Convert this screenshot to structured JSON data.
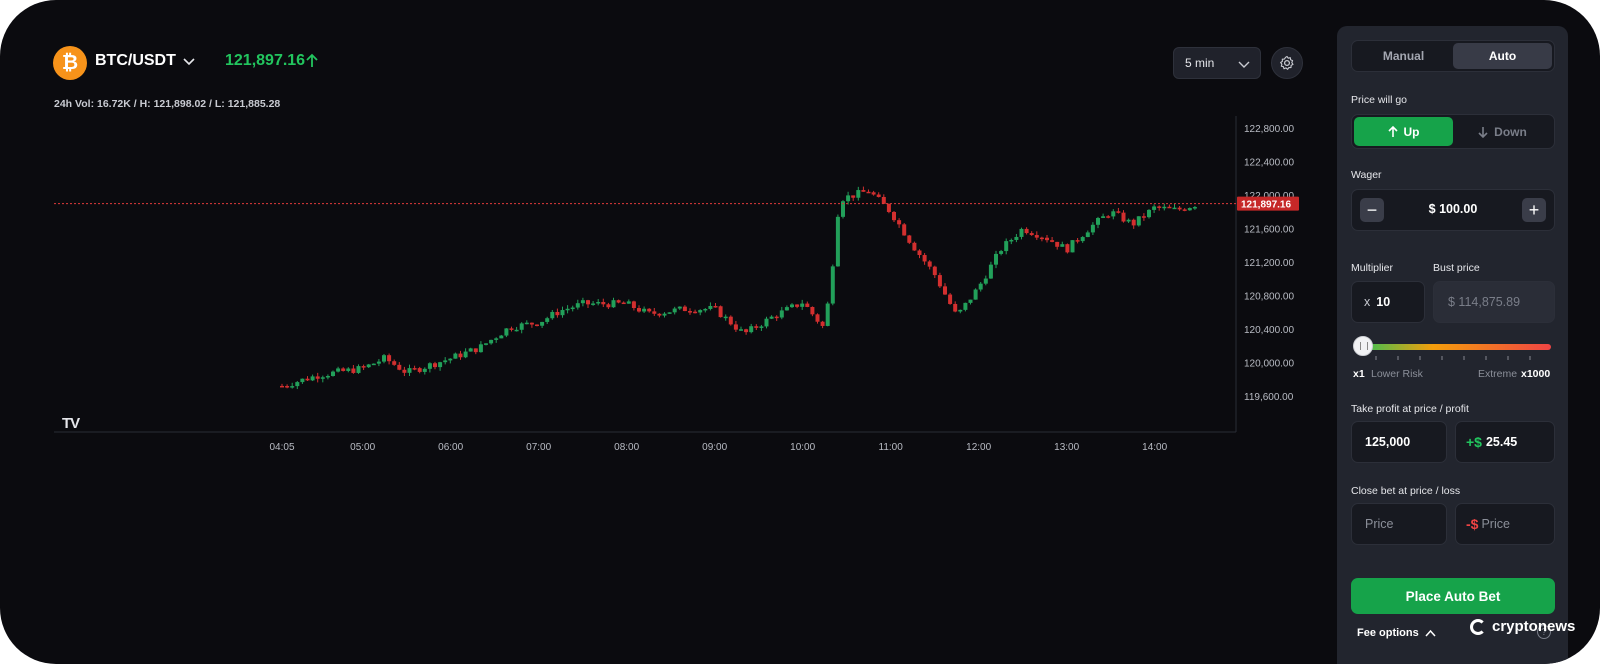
{
  "market": {
    "pair": "BTC/USDT",
    "price": "121,897.16",
    "stats": "24h Vol: 16.72K / H: 121,898.02 / L: 121,885.28",
    "interval": "5 min",
    "icon": "bitcoin-icon"
  },
  "chart_data": {
    "type": "candlestick",
    "x_labels": [
      "04:05",
      "05:00",
      "06:00",
      "07:00",
      "08:00",
      "09:00",
      "10:00",
      "11:00",
      "12:00",
      "13:00",
      "14:00"
    ],
    "y_ticks": [
      "122,800.00",
      "122,400.00",
      "122,000.00",
      "121,600.00",
      "121,200.00",
      "120,800.00",
      "120,400.00",
      "120,000.00",
      "119,600.00"
    ],
    "ylim": [
      119600,
      122800
    ],
    "current_price": 121897.16,
    "current_price_label": "121,897.16",
    "up_color": "#22a05a",
    "down_color": "#d32f2f",
    "approx_path": [
      [
        "04:05",
        119720
      ],
      [
        "04:30",
        119850
      ],
      [
        "05:00",
        119930
      ],
      [
        "05:15",
        120050
      ],
      [
        "05:30",
        119880
      ],
      [
        "06:00",
        120050
      ],
      [
        "06:20",
        120180
      ],
      [
        "06:40",
        120420
      ],
      [
        "07:00",
        120480
      ],
      [
        "07:15",
        120620
      ],
      [
        "07:30",
        120700
      ],
      [
        "08:00",
        120700
      ],
      [
        "08:15",
        120580
      ],
      [
        "08:40",
        120640
      ],
      [
        "09:00",
        120640
      ],
      [
        "09:20",
        120340
      ],
      [
        "09:40",
        120550
      ],
      [
        "10:00",
        120720
      ],
      [
        "10:15",
        120400
      ],
      [
        "10:20",
        121100
      ],
      [
        "10:25",
        121950
      ],
      [
        "10:45",
        122050
      ],
      [
        "11:00",
        121800
      ],
      [
        "11:15",
        121400
      ],
      [
        "11:30",
        121050
      ],
      [
        "11:45",
        120550
      ],
      [
        "12:00",
        120900
      ],
      [
        "12:15",
        121350
      ],
      [
        "12:30",
        121600
      ],
      [
        "12:45",
        121500
      ],
      [
        "13:00",
        121350
      ],
      [
        "13:15",
        121600
      ],
      [
        "13:30",
        121800
      ],
      [
        "13:45",
        121650
      ],
      [
        "14:00",
        121850
      ],
      [
        "14:15",
        121820
      ],
      [
        "14:30",
        121900
      ]
    ]
  },
  "panel": {
    "tabs": [
      "Manual",
      "Auto"
    ],
    "active_tab": "Auto",
    "direction_label": "Price will go",
    "up_label": "Up",
    "down_label": "Down",
    "wager_label": "Wager",
    "wager_value": "$ 100.00",
    "multiplier_label": "Multiplier",
    "multiplier_prefix": "x",
    "multiplier_value": "10",
    "bust_label": "Bust price",
    "bust_value": "$ 114,875.89",
    "slider_min": "x1",
    "slider_min_label": "Lower Risk",
    "slider_max_label": "Extreme",
    "slider_max": "x1000",
    "multiplier_level": 0.01,
    "take_profit_label": "Take profit at price / profit",
    "take_profit_price": "125,000",
    "take_profit_prefix": "+$",
    "take_profit_amount": "25.45",
    "close_label": "Close bet at price / loss",
    "close_price_placeholder": "Price",
    "close_loss_prefix": "-$",
    "close_loss_placeholder": "Price",
    "cta": "Place Auto Bet",
    "fee_options": "Fee options"
  },
  "branding": {
    "chart_logo": "TV",
    "watermark": "cryptonews"
  }
}
